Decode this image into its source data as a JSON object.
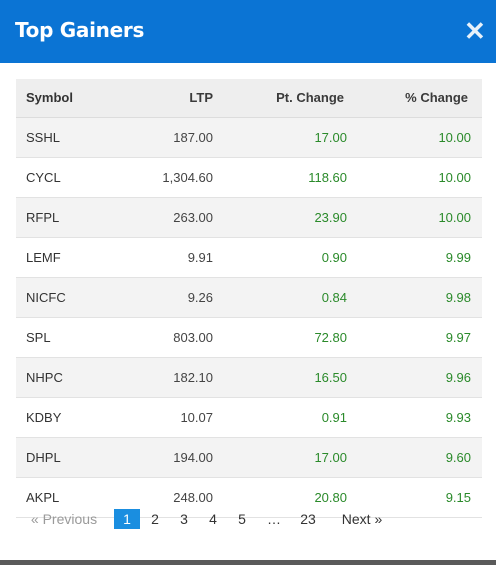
{
  "dialog": {
    "title": "Top Gainers",
    "close_glyph": "✕"
  },
  "table": {
    "headers": {
      "symbol": "Symbol",
      "ltp": "LTP",
      "pt_change": "Pt. Change",
      "pct_change": "% Change"
    },
    "rows": [
      {
        "symbol": "SSHL",
        "ltp": "187.00",
        "pt": "17.00",
        "pct": "10.00"
      },
      {
        "symbol": "CYCL",
        "ltp": "1,304.60",
        "pt": "118.60",
        "pct": "10.00"
      },
      {
        "symbol": "RFPL",
        "ltp": "263.00",
        "pt": "23.90",
        "pct": "10.00"
      },
      {
        "symbol": "LEMF",
        "ltp": "9.91",
        "pt": "0.90",
        "pct": "9.99"
      },
      {
        "symbol": "NICFC",
        "ltp": "9.26",
        "pt": "0.84",
        "pct": "9.98"
      },
      {
        "symbol": "SPL",
        "ltp": "803.00",
        "pt": "72.80",
        "pct": "9.97"
      },
      {
        "symbol": "NHPC",
        "ltp": "182.10",
        "pt": "16.50",
        "pct": "9.96"
      },
      {
        "symbol": "KDBY",
        "ltp": "10.07",
        "pt": "0.91",
        "pct": "9.93"
      },
      {
        "symbol": "DHPL",
        "ltp": "194.00",
        "pt": "17.00",
        "pct": "9.60"
      },
      {
        "symbol": "AKPL",
        "ltp": "248.00",
        "pt": "20.80",
        "pct": "9.15"
      }
    ]
  },
  "pagination": {
    "previous": "« Previous",
    "pages": [
      "1",
      "2",
      "3",
      "4",
      "5",
      "…",
      "23"
    ],
    "current": "1",
    "next": "Next »"
  },
  "colors": {
    "header": "#0b74d4",
    "positive": "#2a8a2a",
    "active_page": "#1a8ee0"
  }
}
